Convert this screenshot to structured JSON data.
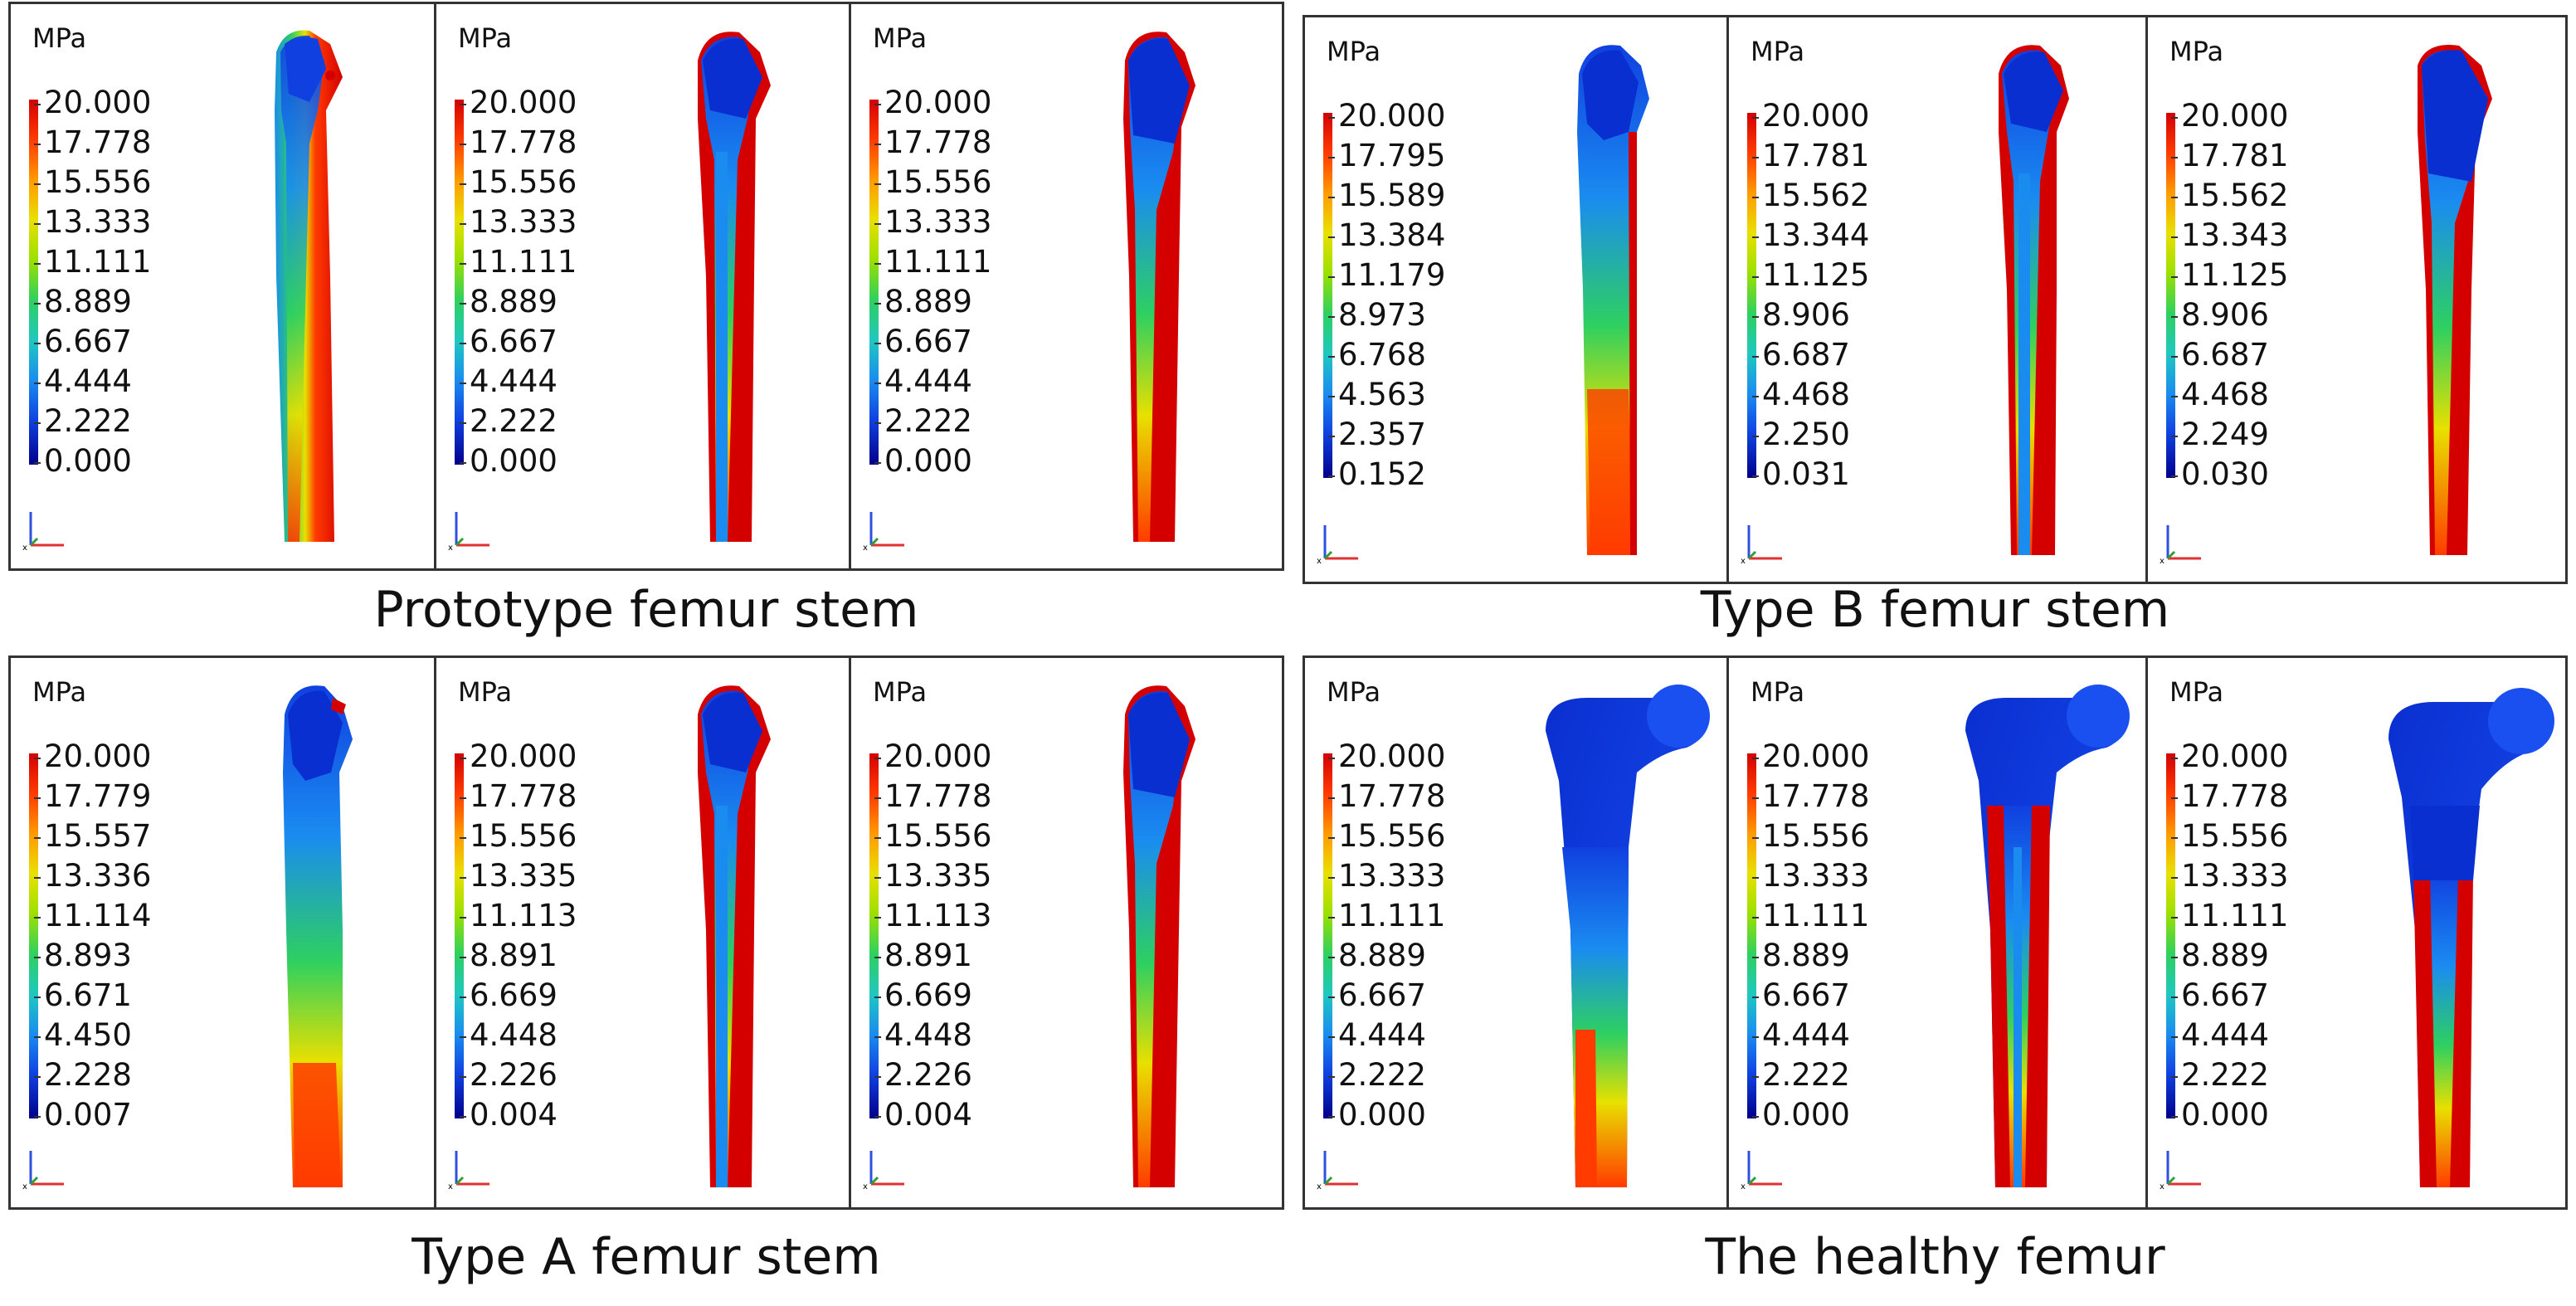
{
  "unit": "MPa",
  "groups": [
    {
      "caption": "Prototype femur stem",
      "panels": [
        {
          "ticks": [
            "20.000",
            "17.778",
            "15.556",
            "13.333",
            "11.111",
            "8.889",
            "6.667",
            "4.444",
            "2.222",
            "0.000"
          ]
        },
        {
          "ticks": [
            "20.000",
            "17.778",
            "15.556",
            "13.333",
            "11.111",
            "8.889",
            "6.667",
            "4.444",
            "2.222",
            "0.000"
          ]
        },
        {
          "ticks": [
            "20.000",
            "17.778",
            "15.556",
            "13.333",
            "11.111",
            "8.889",
            "6.667",
            "4.444",
            "2.222",
            "0.000"
          ]
        }
      ]
    },
    {
      "caption": "Type B femur stem",
      "panels": [
        {
          "ticks": [
            "20.000",
            "17.795",
            "15.589",
            "13.384",
            "11.179",
            "8.973",
            "6.768",
            "4.563",
            "2.357",
            "0.152"
          ]
        },
        {
          "ticks": [
            "20.000",
            "17.781",
            "15.562",
            "13.344",
            "11.125",
            "8.906",
            "6.687",
            "4.468",
            "2.250",
            "0.031"
          ]
        },
        {
          "ticks": [
            "20.000",
            "17.781",
            "15.562",
            "13.343",
            "11.125",
            "8.906",
            "6.687",
            "4.468",
            "2.249",
            "0.030"
          ]
        }
      ]
    },
    {
      "caption": "Type A femur stem",
      "panels": [
        {
          "ticks": [
            "20.000",
            "17.779",
            "15.557",
            "13.336",
            "11.114",
            "8.893",
            "6.671",
            "4.450",
            "2.228",
            "0.007"
          ]
        },
        {
          "ticks": [
            "20.000",
            "17.778",
            "15.556",
            "13.335",
            "11.113",
            "8.891",
            "6.669",
            "4.448",
            "2.226",
            "0.004"
          ]
        },
        {
          "ticks": [
            "20.000",
            "17.778",
            "15.556",
            "13.335",
            "11.113",
            "8.891",
            "6.669",
            "4.448",
            "2.226",
            "0.004"
          ]
        }
      ]
    },
    {
      "caption": "The healthy femur",
      "panels": [
        {
          "ticks": [
            "20.000",
            "17.778",
            "15.556",
            "13.333",
            "11.111",
            "8.889",
            "6.667",
            "4.444",
            "2.222",
            "0.000"
          ]
        },
        {
          "ticks": [
            "20.000",
            "17.778",
            "15.556",
            "13.333",
            "11.111",
            "8.889",
            "6.667",
            "4.444",
            "2.222",
            "0.000"
          ]
        },
        {
          "ticks": [
            "20.000",
            "17.778",
            "15.556",
            "13.333",
            "11.111",
            "8.889",
            "6.667",
            "4.444",
            "2.222",
            "0.000"
          ]
        }
      ]
    }
  ],
  "colors": {
    "high": "#d40000",
    "mid_high": "#ff9a00",
    "mid": "#e8e000",
    "mid_low": "#2ed060",
    "low": "#1a8cf0",
    "min": "#00008a",
    "frame": "#333333"
  },
  "icons": [
    "coordinate-axes-icon"
  ]
}
